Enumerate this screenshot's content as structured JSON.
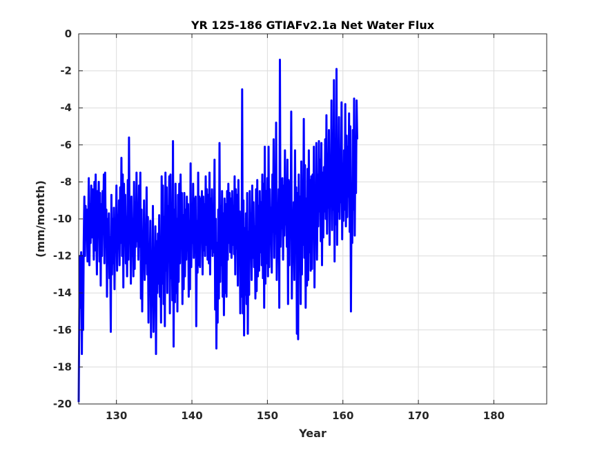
{
  "chart_data": {
    "type": "line",
    "title": "YR 125-186 GTIAFv2.1a Net Water Flux",
    "xlabel": "Year",
    "ylabel": "(mm/month)",
    "xlim": [
      125,
      187
    ],
    "ylim": [
      -20,
      0
    ],
    "xticks": [
      130,
      140,
      150,
      160,
      170,
      180
    ],
    "yticks": [
      -20,
      -18,
      -16,
      -14,
      -12,
      -10,
      -8,
      -6,
      -4,
      -2,
      0
    ],
    "grid": true,
    "legend": "none",
    "series_color": "#0000ff",
    "series": [
      {
        "x_start": 125,
        "x_step": 0.0833,
        "y": [
          -19.9,
          -15,
          -12,
          -14.8,
          -11.8,
          -17.3,
          -12,
          -16,
          -11.3,
          -8.8,
          -12,
          -9.3,
          -10.8,
          -9.5,
          -12.3,
          -10.8,
          -7.8,
          -12.5,
          -9.2,
          -11.3,
          -8.2,
          -11,
          -8.4,
          -10.2,
          -12.2,
          -8,
          -11.7,
          -7.6,
          -10.5,
          -13,
          -8.5,
          -10.6,
          -8,
          -12.3,
          -8.6,
          -13.6,
          -9.2,
          -12,
          -8.5,
          -10.8,
          -7.6,
          -12.4,
          -7.5,
          -11.5,
          -9.5,
          -14.2,
          -10,
          -12,
          -9.7,
          -13.2,
          -11,
          -16.1,
          -8.7,
          -13,
          -10,
          -12.4,
          -9.4,
          -13.8,
          -10.2,
          -11.3,
          -8.2,
          -12.8,
          -9.8,
          -11.6,
          -9,
          -12.5,
          -8.3,
          -11.3,
          -6.7,
          -12,
          -7.6,
          -13.7,
          -8.1,
          -11,
          -8.7,
          -12.4,
          -9.9,
          -13.1,
          -7.9,
          -12.2,
          -5.6,
          -11.2,
          -9.4,
          -13.5,
          -8.8,
          -12,
          -10,
          -13.1,
          -8,
          -12.7,
          -9.1,
          -11.5,
          -7.5,
          -11.2,
          -9.3,
          -12.2,
          -8.2,
          -11.5,
          -7.5,
          -14.3,
          -9.5,
          -15,
          -10.8,
          -12.6,
          -9,
          -13.3,
          -10.5,
          -12.4,
          -8.3,
          -13,
          -9.9,
          -15.6,
          -11.4,
          -13.1,
          -10.1,
          -16.4,
          -12.6,
          -14.3,
          -9.3,
          -16.1,
          -12.4,
          -13.9,
          -10.4,
          -17.3,
          -11.2,
          -14,
          -10.8,
          -13.5,
          -9.8,
          -14.2,
          -12,
          -15.6,
          -7.7,
          -13.5,
          -8.2,
          -14.6,
          -9.9,
          -15.8,
          -7.5,
          -12.8,
          -8.3,
          -14,
          -9.3,
          -11.4,
          -7.7,
          -15.1,
          -7.6,
          -13.2,
          -10.6,
          -14.4,
          -5.8,
          -16.9,
          -9.5,
          -14.5,
          -8.1,
          -14,
          -10,
          -15,
          -8.7,
          -13.4,
          -8.1,
          -12.4,
          -7.6,
          -11.2,
          -8.6,
          -14.6,
          -9.8,
          -13.8,
          -8.6,
          -13.1,
          -9.5,
          -12.2,
          -8.8,
          -11.7,
          -9.2,
          -14.2,
          -10.1,
          -13.8,
          -7,
          -12.6,
          -9.2,
          -11.3,
          -8.1,
          -12.1,
          -8.9,
          -11.8,
          -8.8,
          -15.8,
          -10.1,
          -12.9,
          -7.5,
          -12.5,
          -8.8,
          -12.6,
          -8.9,
          -11,
          -8.5,
          -13,
          -8.8,
          -11.7,
          -9.2,
          -12,
          -7.7,
          -11.4,
          -8.4,
          -12.2,
          -8.7,
          -12.4,
          -7.5,
          -13,
          -8.9,
          -11.6,
          -8.4,
          -12,
          -9.5,
          -11.8,
          -6.8,
          -14.9,
          -10,
          -17,
          -11.3,
          -15.6,
          -9.5,
          -14.3,
          -5.9,
          -13.4,
          -9.3,
          -12.5,
          -8.5,
          -14.2,
          -9.7,
          -15.2,
          -8.9,
          -14,
          -9.2,
          -14.2,
          -8.5,
          -12.2,
          -8.1,
          -11.3,
          -8.6,
          -11.8,
          -8.9,
          -12.1,
          -8.5,
          -11.4,
          -9.3,
          -11.9,
          -7.7,
          -13,
          -8.4,
          -11.6,
          -8.7,
          -13.6,
          -7.9,
          -12.1,
          -9.6,
          -15.1,
          -9.9,
          -14.2,
          -3,
          -15.1,
          -9,
          -16.3,
          -10.5,
          -14.1,
          -9.7,
          -14.6,
          -8.6,
          -16.2,
          -10.7,
          -14.1,
          -8.5,
          -12,
          -9.7,
          -13.3,
          -8.2,
          -12.1,
          -9.1,
          -12.6,
          -10.4,
          -14.3,
          -8.4,
          -13.9,
          -7.9,
          -13.1,
          -9.3,
          -12.8,
          -8.5,
          -11.8,
          -9.1,
          -12.5,
          -7.6,
          -13.2,
          -8.1,
          -14.8,
          -6.1,
          -13.5,
          -8.5,
          -12.4,
          -7.8,
          -13.1,
          -6.1,
          -12.6,
          -8.4,
          -11.3,
          -9.4,
          -12.9,
          -7.6,
          -10.7,
          -5.7,
          -12.1,
          -8.1,
          -10.8,
          -4.8,
          -13.3,
          -9.5,
          -11.1,
          -8.4,
          -14.8,
          -1.4,
          -11.5,
          -8.1,
          -10.5,
          -7.8,
          -12.2,
          -8.2,
          -10.9,
          -6.3,
          -10.3,
          -8.8,
          -11.5,
          -6.8,
          -14.6,
          -7.9,
          -12.5,
          -8,
          -11,
          -4.2,
          -14.3,
          -9.7,
          -12.1,
          -9.1,
          -13.3,
          -6.3,
          -11,
          -8.3,
          -16.2,
          -8.6,
          -16.5,
          -7.6,
          -12.3,
          -8.8,
          -14.6,
          -6.9,
          -13,
          -8.3,
          -11.4,
          -4.6,
          -12.1,
          -7.1,
          -14.8,
          -8.9,
          -13.6,
          -7.3,
          -13.3,
          -6.3,
          -11.8,
          -7.9,
          -12.8,
          -7.7,
          -12.7,
          -7.6,
          -11,
          -6.1,
          -13.7,
          -9.1,
          -11.3,
          -5.9,
          -12.2,
          -7.6,
          -10.4,
          -5.8,
          -9.6,
          -6.8,
          -11.2,
          -5.9,
          -12.5,
          -7.5,
          -11,
          -7.2,
          -9.6,
          -5.7,
          -10,
          -4.4,
          -10.8,
          -6.5,
          -9.4,
          -5.2,
          -11.4,
          -7.1,
          -9.1,
          -3.6,
          -10.6,
          -6.8,
          -9.5,
          -2.5,
          -12.3,
          -5.7,
          -10.3,
          -1.9,
          -11.4,
          -6.4,
          -9.6,
          -4.5,
          -10,
          -7.5,
          -9.1,
          -3.7,
          -11.1,
          -7,
          -10.1,
          -6.3,
          -9.5,
          -3.8,
          -10.4,
          -5.5,
          -9.9,
          -6.1,
          -8.8,
          -4.3,
          -10.7,
          -5,
          -15,
          -8.4,
          -11.3,
          -5.2,
          -9.5,
          -3.5,
          -10.9,
          -6.1,
          -8.6,
          -3.6,
          -5.7
        ]
      }
    ]
  }
}
